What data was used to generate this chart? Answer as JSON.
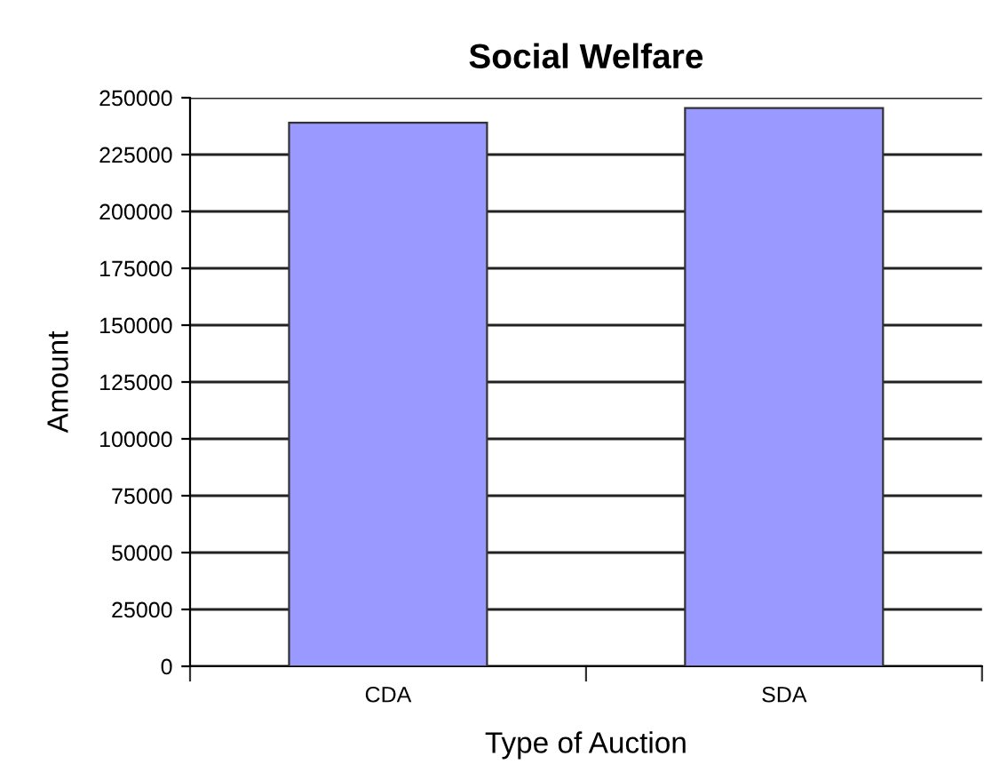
{
  "chart_data": {
    "type": "bar",
    "title": "Social Welfare",
    "xlabel": "Type of Auction",
    "ylabel": "Amount",
    "categories": [
      "CDA",
      "SDA"
    ],
    "values": [
      239000,
      245500
    ],
    "color": "#9999ff",
    "ylim": [
      0,
      250000
    ],
    "yticks": [
      0,
      25000,
      50000,
      75000,
      100000,
      125000,
      150000,
      175000,
      200000,
      225000,
      250000
    ],
    "grid": "y"
  }
}
